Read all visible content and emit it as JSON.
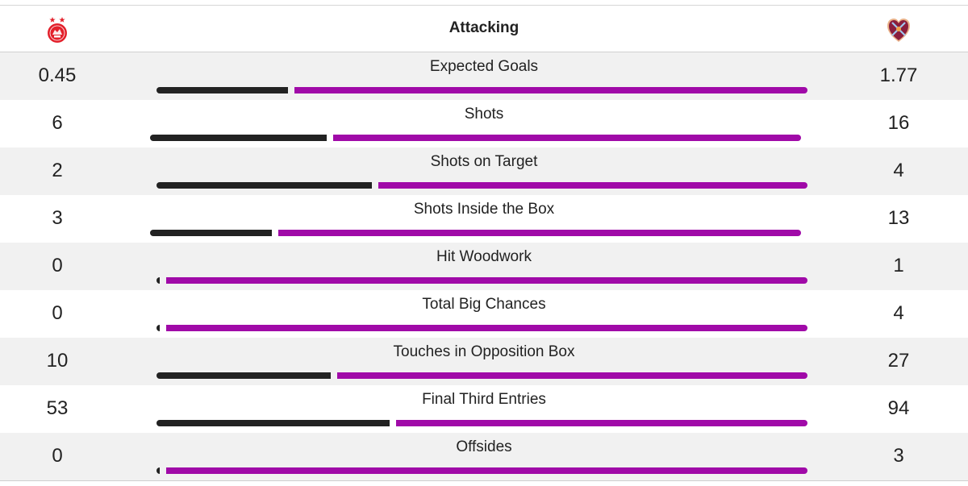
{
  "header": {
    "title": "Attacking",
    "home_team_icon": "aberdeen-crest-icon",
    "away_team_icon": "hearts-crest-icon"
  },
  "colors": {
    "home_bar": "#222222",
    "away_bar": "#a00aa8",
    "row_shade": "#f1f1f1"
  },
  "stats": [
    {
      "label": "Expected Goals",
      "home": "0.45",
      "away": "1.77",
      "bar": {
        "start": 194,
        "split": 357,
        "gap_start": 365,
        "end": 1001
      }
    },
    {
      "label": "Shots",
      "home": "6",
      "away": "16",
      "bar": {
        "start": 186,
        "split": 405,
        "gap_start": 413,
        "end": 993
      }
    },
    {
      "label": "Shots on Target",
      "home": "2",
      "away": "4",
      "bar": {
        "start": 194,
        "split": 461,
        "gap_start": 469,
        "end": 1001
      }
    },
    {
      "label": "Shots Inside the Box",
      "home": "3",
      "away": "13",
      "bar": {
        "start": 186,
        "split": 337,
        "gap_start": 345,
        "end": 993
      }
    },
    {
      "label": "Hit Woodwork",
      "home": "0",
      "away": "1",
      "bar": {
        "start": 194,
        "split": 198,
        "gap_start": 206,
        "end": 1001
      }
    },
    {
      "label": "Total Big Chances",
      "home": "0",
      "away": "4",
      "bar": {
        "start": 194,
        "split": 198,
        "gap_start": 206,
        "end": 1001
      }
    },
    {
      "label": "Touches in Opposition Box",
      "home": "10",
      "away": "27",
      "bar": {
        "start": 194,
        "split": 410,
        "gap_start": 418,
        "end": 1001
      }
    },
    {
      "label": "Final Third Entries",
      "home": "53",
      "away": "94",
      "bar": {
        "start": 194,
        "split": 483,
        "gap_start": 491,
        "end": 1001
      }
    },
    {
      "label": "Offsides",
      "home": "0",
      "away": "3",
      "bar": {
        "start": 194,
        "split": 198,
        "gap_start": 206,
        "end": 1001
      }
    }
  ]
}
